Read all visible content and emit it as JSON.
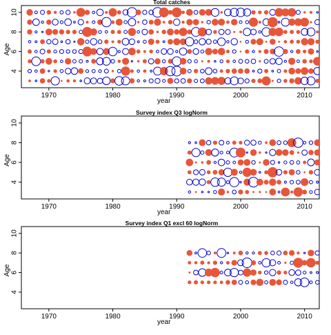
{
  "chart_data": [
    {
      "type": "scatter",
      "title": "Total catches",
      "xlabel": "year",
      "ylabel": "Age",
      "xlim": [
        1965.7,
        2012.3
      ],
      "ylim": [
        2.3,
        10.7
      ],
      "xticks": [
        "1970",
        "1980",
        "1990",
        "2000",
        "2010"
      ],
      "yticks": [
        "4",
        "6",
        "8",
        "10"
      ],
      "x_range": [
        1967,
        2012
      ],
      "ages": [
        3,
        4,
        5,
        6,
        7,
        8,
        9,
        10
      ],
      "seed": 11,
      "colors": {
        "positive": "#e8563a",
        "negative": "#0000cc"
      }
    },
    {
      "type": "scatter",
      "title": "Survey index Q3 logNorm",
      "xlabel": "year",
      "ylabel": "Age",
      "xlim": [
        1965.7,
        2012.3
      ],
      "ylim": [
        2.3,
        10.7
      ],
      "xticks": [
        "1970",
        "1980",
        "1990",
        "2000",
        "2010"
      ],
      "yticks": [
        "4",
        "6",
        "8",
        "10"
      ],
      "x_range": [
        1992,
        2012
      ],
      "ages": [
        3,
        4,
        5,
        6,
        7,
        8
      ],
      "seed": 23,
      "colors": {
        "positive": "#e8563a",
        "negative": "#0000cc"
      }
    },
    {
      "type": "scatter",
      "title": "Survey index Q1 excl 60 logNorm",
      "xlabel": "year",
      "ylabel": "Age",
      "xlim": [
        1965.7,
        2012.3
      ],
      "ylim": [
        2.3,
        10.7
      ],
      "xticks": [
        "1970",
        "1980",
        "1990",
        "2000",
        "2010"
      ],
      "yticks": [
        "4",
        "6",
        "8",
        "10"
      ],
      "x_range": [
        1992,
        2012
      ],
      "ages": [
        5,
        6,
        7,
        8
      ],
      "seed": 37,
      "colors": {
        "positive": "#e8563a",
        "negative": "#0000cc"
      }
    }
  ]
}
